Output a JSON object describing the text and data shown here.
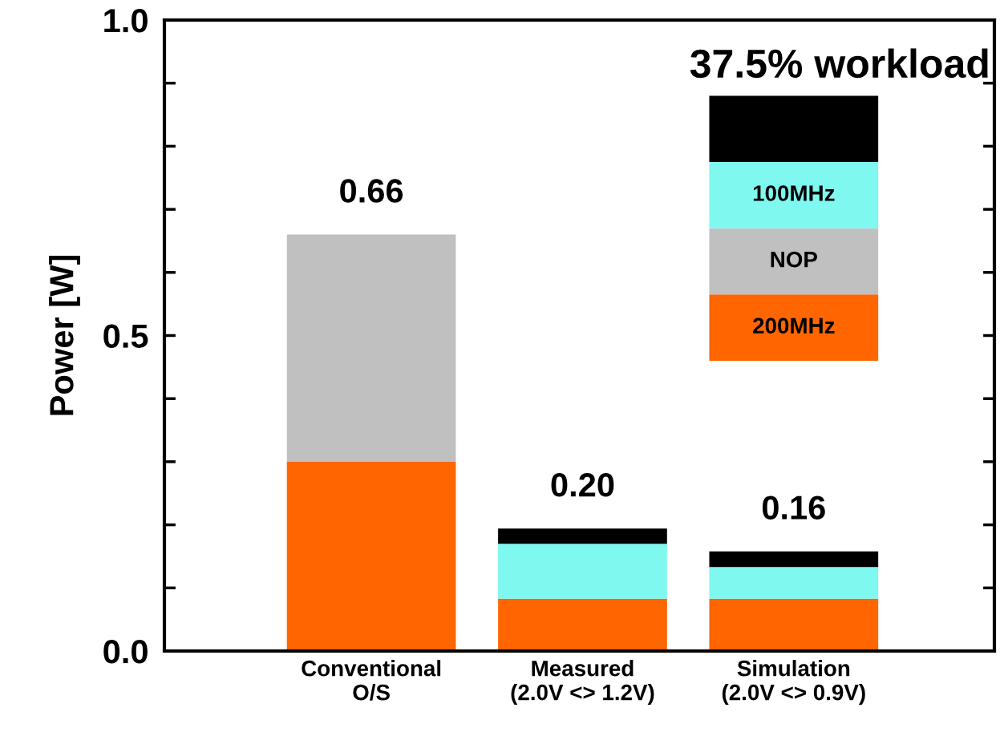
{
  "chart_data": {
    "type": "bar",
    "stacked": true,
    "ylabel": "Power [W]",
    "categories": [
      "Conventional\nO/S",
      "Measured\n(2.0V <> 1.2V)",
      "Simulation\n(2.0V <> 0.9V)"
    ],
    "series": [
      {
        "name": "200MHz",
        "color": "#ff6600",
        "values": [
          0.3,
          0.083,
          0.083
        ]
      },
      {
        "name": "NOP",
        "color": "#c0c0c0",
        "values": [
          0.36,
          null,
          null
        ]
      },
      {
        "name": "100MHz",
        "color": "#7ff8f0",
        "values": [
          null,
          0.087,
          0.05
        ]
      },
      {
        "color": "#000000",
        "values": [
          null,
          0.024,
          0.025
        ]
      }
    ],
    "totals": [
      "0.66",
      "0.20",
      "0.16"
    ],
    "ylim": [
      0,
      1.0
    ],
    "yticks": [
      {
        "value": 0,
        "label": "0.0"
      },
      {
        "value": 0.1,
        "label": null
      },
      {
        "value": 0.2,
        "label": null
      },
      {
        "value": 0.3,
        "label": null
      },
      {
        "value": 0.4,
        "label": null
      },
      {
        "value": 0.5,
        "label": "0.5"
      },
      {
        "value": 0.6,
        "label": null
      },
      {
        "value": 0.7,
        "label": null
      },
      {
        "value": 0.8,
        "label": null
      },
      {
        "value": 0.9,
        "label": null
      },
      {
        "value": 1.0,
        "label": "1.0"
      }
    ],
    "annotations": [
      "37.5% workload"
    ],
    "legend": "top right",
    "grid": false
  }
}
